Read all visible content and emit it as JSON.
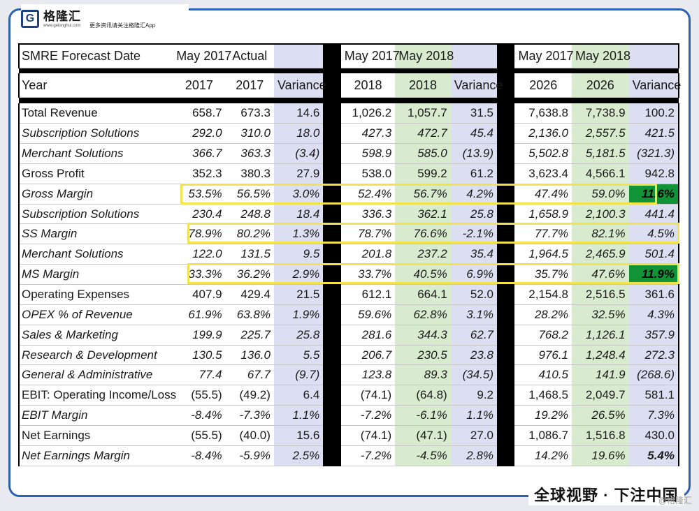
{
  "brand": {
    "logo_letter": "G",
    "name": "格隆汇",
    "url": "www.gelonghui.com",
    "tagline": "更多资讯请关注格隆汇App"
  },
  "table": {
    "header1": {
      "label": "SMRE Forecast Date",
      "g1": [
        "May 2017",
        "Actual",
        ""
      ],
      "g2": [
        "May 2017",
        "May 2018",
        ""
      ],
      "g3": [
        "May 2017",
        "May 2018",
        ""
      ]
    },
    "header2": {
      "label": "Year",
      "g1": [
        "2017",
        "2017",
        "Variance"
      ],
      "g2": [
        "2018",
        "2018",
        "Variance"
      ],
      "g3": [
        "2026",
        "2026",
        "Variance"
      ]
    },
    "rows": [
      {
        "label": "Total Revenue",
        "g1": [
          "658.7",
          "673.3",
          "14.6"
        ],
        "g2": [
          "1,026.2",
          "1,057.7",
          "31.5"
        ],
        "g3": [
          "7,638.8",
          "7,738.9",
          "100.2"
        ]
      },
      {
        "label": "Subscription Solutions",
        "g1": [
          "292.0",
          "310.0",
          "18.0"
        ],
        "g2": [
          "427.3",
          "472.7",
          "45.4"
        ],
        "g3": [
          "2,136.0",
          "2,557.5",
          "421.5"
        ]
      },
      {
        "label": "Merchant Solutions",
        "g1": [
          "366.7",
          "363.3",
          "(3.4)"
        ],
        "g2": [
          "598.9",
          "585.0",
          "(13.9)"
        ],
        "g3": [
          "5,502.8",
          "5,181.5",
          "(321.3)"
        ]
      },
      {
        "label": "Gross Profit",
        "g1": [
          "352.3",
          "380.3",
          "27.9"
        ],
        "g2": [
          "538.0",
          "599.2",
          "61.2"
        ],
        "g3": [
          "3,623.4",
          "4,566.1",
          "942.8"
        ]
      },
      {
        "label": "Gross Margin",
        "g1": [
          "53.5%",
          "56.5%",
          "3.0%"
        ],
        "g2": [
          "52.4%",
          "56.7%",
          "4.2%"
        ],
        "g3": [
          "47.4%",
          "59.0%",
          "11.6%"
        ]
      },
      {
        "label": "Subscription Solutions",
        "g1": [
          "230.4",
          "248.8",
          "18.4"
        ],
        "g2": [
          "336.3",
          "362.1",
          "25.8"
        ],
        "g3": [
          "1,658.9",
          "2,100.3",
          "441.4"
        ]
      },
      {
        "label": "SS Margin",
        "g1": [
          "78.9%",
          "80.2%",
          "1.3%"
        ],
        "g2": [
          "78.7%",
          "76.6%",
          "-2.1%"
        ],
        "g3": [
          "77.7%",
          "82.1%",
          "4.5%"
        ]
      },
      {
        "label": "Merchant Solutions",
        "g1": [
          "122.0",
          "131.5",
          "9.5"
        ],
        "g2": [
          "201.8",
          "237.2",
          "35.4"
        ],
        "g3": [
          "1,964.5",
          "2,465.9",
          "501.4"
        ]
      },
      {
        "label": "MS Margin",
        "g1": [
          "33.3%",
          "36.2%",
          "2.9%"
        ],
        "g2": [
          "33.7%",
          "40.5%",
          "6.9%"
        ],
        "g3": [
          "35.7%",
          "47.6%",
          "11.9%"
        ]
      },
      {
        "label": "Operating Expenses",
        "g1": [
          "407.9",
          "429.4",
          "21.5"
        ],
        "g2": [
          "612.1",
          "664.1",
          "52.0"
        ],
        "g3": [
          "2,154.8",
          "2,516.5",
          "361.6"
        ]
      },
      {
        "label": "OPEX % of Revenue",
        "g1": [
          "61.9%",
          "63.8%",
          "1.9%"
        ],
        "g2": [
          "59.6%",
          "62.8%",
          "3.1%"
        ],
        "g3": [
          "28.2%",
          "32.5%",
          "4.3%"
        ]
      },
      {
        "label": "Sales & Marketing",
        "g1": [
          "199.9",
          "225.7",
          "25.8"
        ],
        "g2": [
          "281.6",
          "344.3",
          "62.7"
        ],
        "g3": [
          "768.2",
          "1,126.1",
          "357.9"
        ]
      },
      {
        "label": "Research & Development",
        "g1": [
          "130.5",
          "136.0",
          "5.5"
        ],
        "g2": [
          "206.7",
          "230.5",
          "23.8"
        ],
        "g3": [
          "976.1",
          "1,248.4",
          "272.3"
        ]
      },
      {
        "label": "General & Administrative",
        "g1": [
          "77.4",
          "67.7",
          "(9.7)"
        ],
        "g2": [
          "123.8",
          "89.3",
          "(34.5)"
        ],
        "g3": [
          "410.5",
          "141.9",
          "(268.6)"
        ]
      },
      {
        "label": "EBIT: Operating Income/Loss",
        "g1": [
          "(55.5)",
          "(49.2)",
          "6.4"
        ],
        "g2": [
          "(74.1)",
          "(64.8)",
          "9.2"
        ],
        "g3": [
          "1,468.5",
          "2,049.7",
          "581.1"
        ]
      },
      {
        "label": "EBIT Margin",
        "g1": [
          "-8.4%",
          "-7.3%",
          "1.1%"
        ],
        "g2": [
          "-7.2%",
          "-6.1%",
          "1.1%"
        ],
        "g3": [
          "19.2%",
          "26.5%",
          "7.3%"
        ]
      },
      {
        "label": "Net Earnings",
        "g1": [
          "(55.5)",
          "(40.0)",
          "15.6"
        ],
        "g2": [
          "(74.1)",
          "(47.1)",
          "27.0"
        ],
        "g3": [
          "1,086.7",
          "1,516.8",
          "430.0"
        ]
      },
      {
        "label": "Net Earnings Margin",
        "g1": [
          "-8.4%",
          "-5.9%",
          "2.5%"
        ],
        "g2": [
          "-7.2%",
          "-4.5%",
          "2.8%"
        ],
        "g3": [
          "14.2%",
          "19.6%",
          "5.4%"
        ]
      }
    ]
  },
  "footer": {
    "slogan": "全球视野 · 下注中国",
    "watermark": "@格隆汇"
  },
  "colors": {
    "frame": "#2a62ae",
    "green_col": "#d8ebcf",
    "blue_col": "#dcdff2",
    "highlight": "#109437",
    "box": "#f2e24b"
  }
}
